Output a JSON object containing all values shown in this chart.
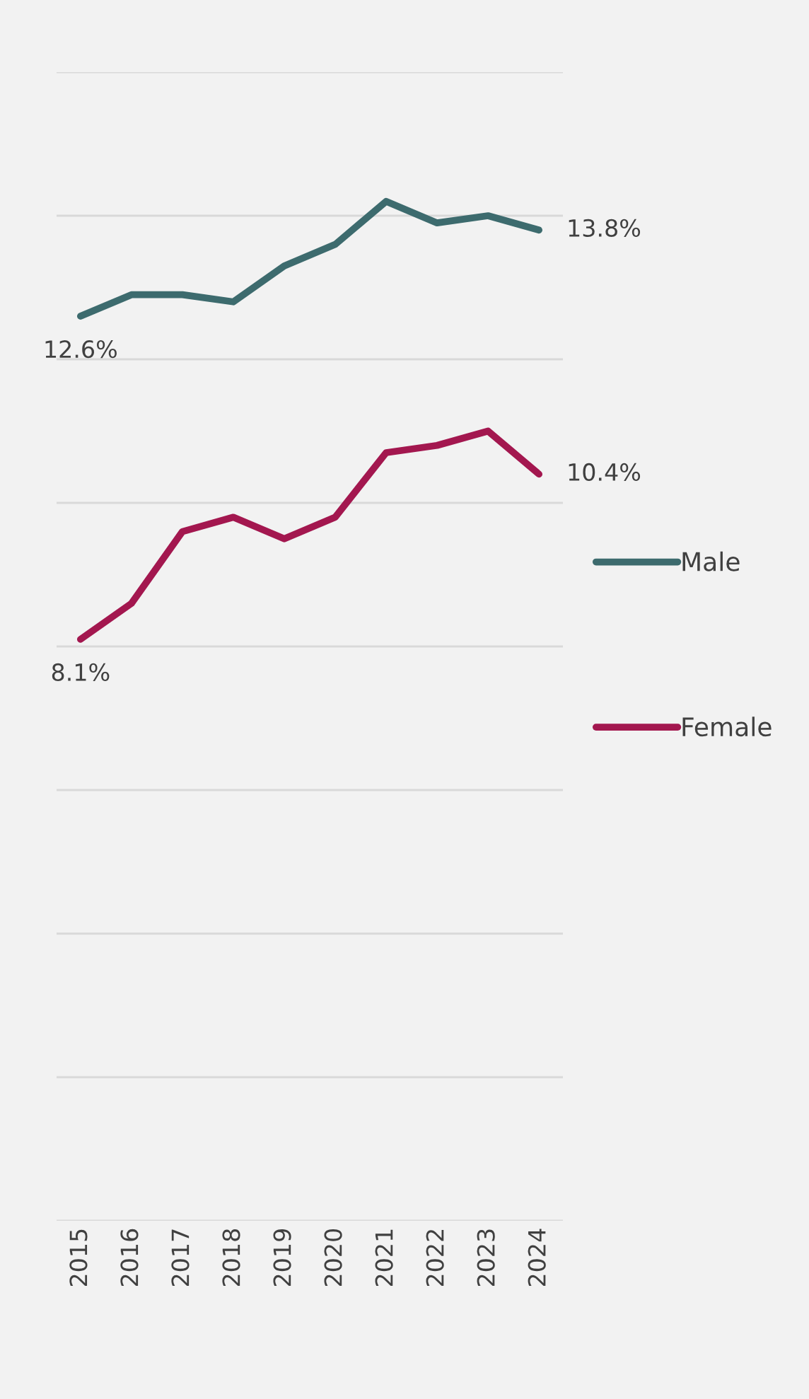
{
  "chart_data": {
    "type": "line",
    "categories": [
      "2015",
      "2016",
      "2017",
      "2018",
      "2019",
      "2020",
      "2021",
      "2022",
      "2023",
      "2024"
    ],
    "series": [
      {
        "name": "Male",
        "color": "#3d6b6e",
        "values": [
          12.6,
          12.9,
          12.9,
          12.8,
          13.3,
          13.6,
          14.2,
          13.9,
          14.0,
          13.8
        ],
        "value_labels": [
          "12.6%",
          null,
          null,
          null,
          null,
          null,
          null,
          null,
          null,
          "13.8%"
        ]
      },
      {
        "name": "Female",
        "color": "#a3174f",
        "values": [
          8.1,
          8.6,
          9.6,
          9.8,
          9.5,
          9.8,
          10.7,
          10.8,
          11.0,
          10.4
        ],
        "value_labels": [
          "8.1%",
          null,
          null,
          null,
          null,
          null,
          null,
          null,
          null,
          "10.4%"
        ]
      }
    ],
    "ylim": [
      0,
      16
    ],
    "yticks": [
      {
        "value": 0,
        "label": null
      },
      {
        "value": 2,
        "label": null
      },
      {
        "value": 4,
        "label": null
      },
      {
        "value": 6,
        "label": null
      },
      {
        "value": 8,
        "label": null
      },
      {
        "value": 10,
        "label": null
      },
      {
        "value": 12,
        "label": null
      },
      {
        "value": 14,
        "label": null
      },
      {
        "value": 16,
        "label": null
      }
    ],
    "grid": "y",
    "legend": "right",
    "marker": "none",
    "line_style": "solid"
  }
}
